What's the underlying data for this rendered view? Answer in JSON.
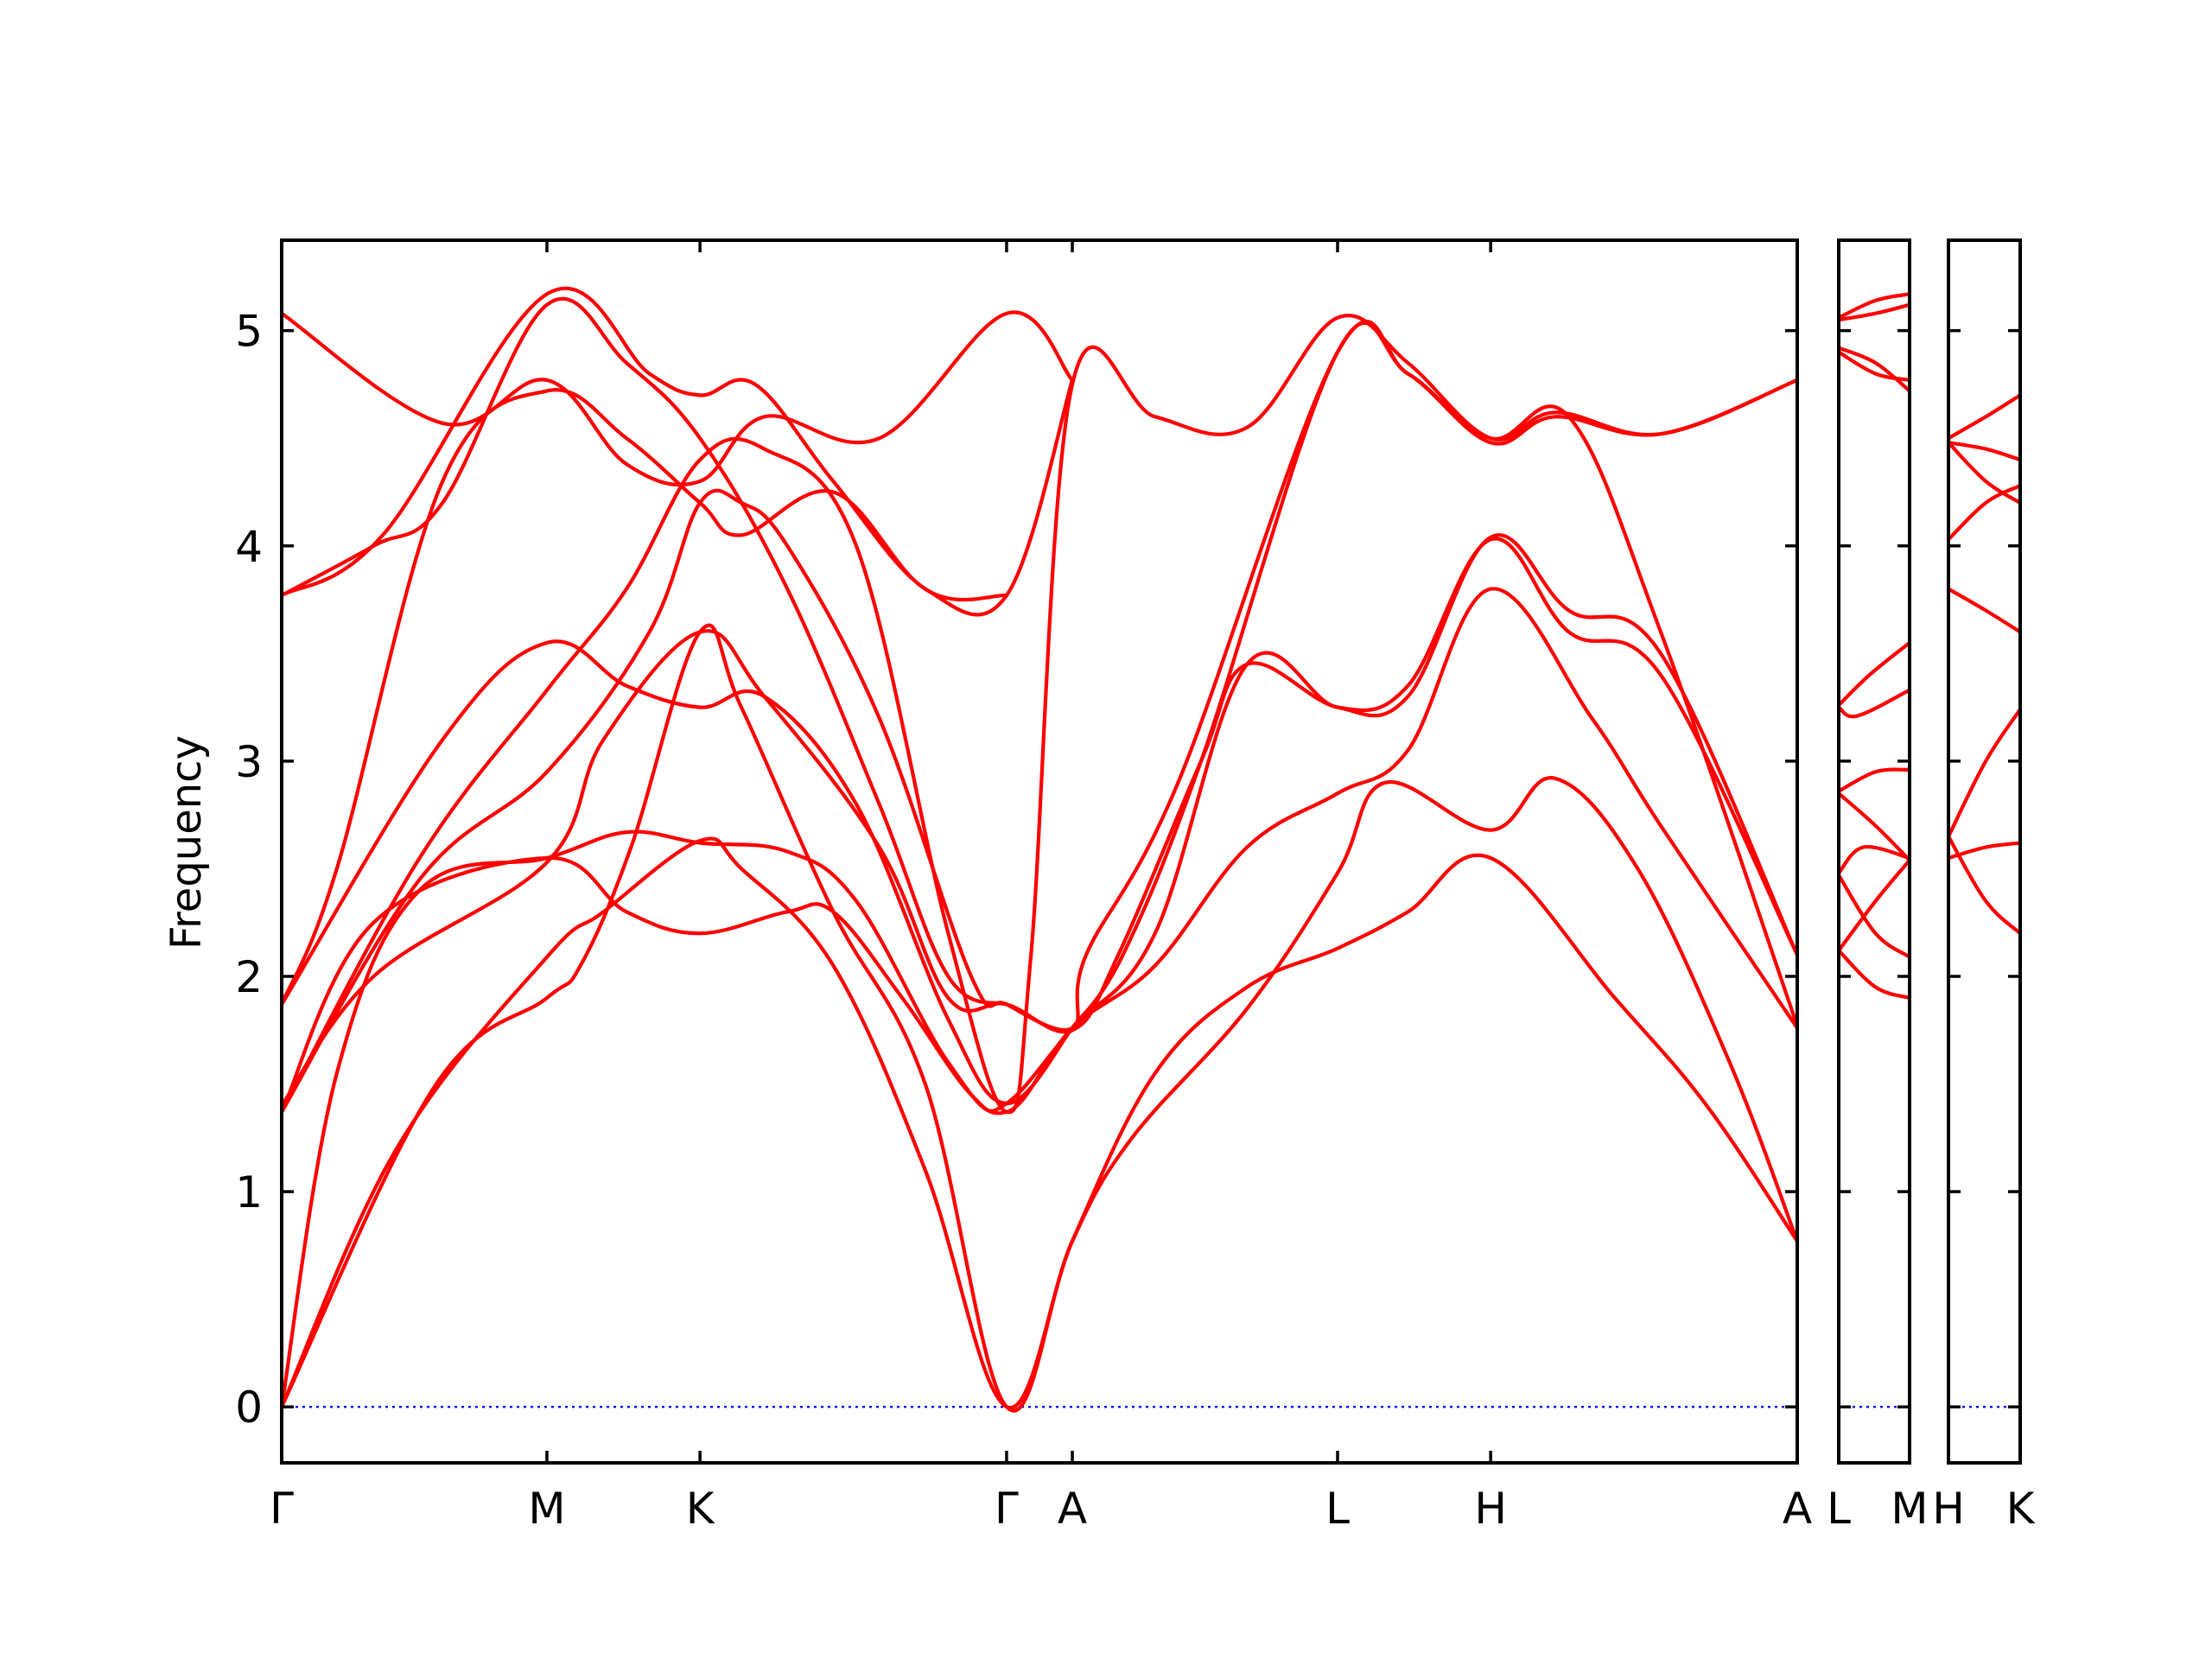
{
  "chart_data": {
    "type": "line",
    "title": "",
    "xlabel": "",
    "ylabel": "Frequency",
    "ylim": [
      -0.26,
      5.42
    ],
    "yticks": [
      0,
      1,
      2,
      3,
      4,
      5
    ],
    "ytick_labels": [
      "0",
      "1",
      "2",
      "3",
      "4",
      "5"
    ],
    "line_color": "#ff0000",
    "zero_line_color": "#0000ff",
    "panels": [
      {
        "name": "panel-main",
        "path": [
          "Γ",
          "M",
          "K",
          "Γ",
          "A",
          "L",
          "H",
          "A"
        ],
        "tick_labels": [
          "Γ",
          "M",
          "K",
          "Γ",
          "A",
          "L",
          "H",
          "A"
        ],
        "x_ticks": [
          0,
          0.577,
          0.91,
          1.577,
          1.72,
          2.297,
          2.63,
          3.297
        ],
        "x_range": [
          0,
          3.297
        ],
        "bands": [
          [
            [
              0,
              0
            ],
            [
              0.33,
              1.48
            ],
            [
              0.577,
              1.9
            ],
            [
              0.65,
              2.05
            ],
            [
              0.76,
              2.6
            ],
            [
              0.91,
              3.6
            ],
            [
              1.0,
              3.25
            ],
            [
              1.2,
              2.3
            ],
            [
              1.4,
              1.5
            ],
            [
              1.577,
              0
            ],
            [
              1.72,
              0.77
            ],
            [
              1.9,
              1.55
            ],
            [
              2.1,
              1.95
            ],
            [
              2.297,
              2.13
            ],
            [
              2.45,
              2.3
            ],
            [
              2.63,
              2.55
            ],
            [
              2.9,
              1.9
            ],
            [
              3.1,
              1.4
            ],
            [
              3.297,
              0.77
            ]
          ],
          [
            [
              0,
              0
            ],
            [
              0.25,
              1.2
            ],
            [
              0.577,
              2.09
            ],
            [
              0.7,
              2.3
            ],
            [
              0.91,
              2.63
            ],
            [
              1.0,
              2.5
            ],
            [
              1.2,
              2.05
            ],
            [
              1.4,
              1.1
            ],
            [
              1.577,
              0
            ],
            [
              1.72,
              0.77
            ],
            [
              1.85,
              1.25
            ],
            [
              2.1,
              1.85
            ],
            [
              2.297,
              2.48
            ],
            [
              2.4,
              2.9
            ],
            [
              2.63,
              2.68
            ],
            [
              2.77,
              2.92
            ],
            [
              2.95,
              2.5
            ],
            [
              3.15,
              1.6
            ],
            [
              3.297,
              0.77
            ]
          ],
          [
            [
              0,
              0
            ],
            [
              0.12,
              1.55
            ],
            [
              0.3,
              2.4
            ],
            [
              0.577,
              2.55
            ],
            [
              0.75,
              2.67
            ],
            [
              0.91,
              2.62
            ],
            [
              1.1,
              2.58
            ],
            [
              1.25,
              2.35
            ],
            [
              1.45,
              1.6
            ],
            [
              1.577,
              1.37
            ],
            [
              1.72,
              1.76
            ],
            [
              1.9,
              2.05
            ],
            [
              2.1,
              2.6
            ],
            [
              2.297,
              2.85
            ],
            [
              2.45,
              3.05
            ],
            [
              2.63,
              3.8
            ],
            [
              2.85,
              3.2
            ],
            [
              3.0,
              2.7
            ],
            [
              3.297,
              1.76
            ]
          ],
          [
            [
              0,
              1.37
            ],
            [
              0.2,
              2.25
            ],
            [
              0.577,
              2.55
            ],
            [
              0.75,
              2.3
            ],
            [
              0.91,
              2.2
            ],
            [
              1.1,
              2.3
            ],
            [
              1.2,
              2.3
            ],
            [
              1.35,
              1.9
            ],
            [
              1.5,
              1.45
            ],
            [
              1.577,
              1.41
            ],
            [
              1.72,
              1.76
            ],
            [
              1.9,
              2.2
            ],
            [
              2.1,
              3.45
            ],
            [
              2.297,
              3.25
            ],
            [
              2.45,
              3.35
            ],
            [
              2.63,
              4.03
            ],
            [
              2.8,
              3.6
            ],
            [
              3.0,
              3.4
            ],
            [
              3.297,
              2.1
            ]
          ],
          [
            [
              0,
              1.4
            ],
            [
              0.2,
              2.0
            ],
            [
              0.577,
              2.53
            ],
            [
              0.7,
              3.1
            ],
            [
              0.91,
              3.6
            ],
            [
              1.05,
              3.3
            ],
            [
              1.3,
              2.6
            ],
            [
              1.45,
              1.9
            ],
            [
              1.577,
              1.87
            ],
            [
              1.72,
              1.75
            ],
            [
              1.82,
              2.1
            ],
            [
              2.0,
              3.0
            ],
            [
              2.1,
              3.45
            ],
            [
              2.297,
              3.25
            ],
            [
              2.45,
              3.3
            ],
            [
              2.63,
              4.04
            ],
            [
              2.8,
              3.7
            ],
            [
              3.0,
              3.5
            ],
            [
              3.297,
              2.1
            ]
          ],
          [
            [
              0,
              1.37
            ],
            [
              0.3,
              2.45
            ],
            [
              0.577,
              2.95
            ],
            [
              0.8,
              3.6
            ],
            [
              0.91,
              4.2
            ],
            [
              1.0,
              4.2
            ],
            [
              1.1,
              4.0
            ],
            [
              1.3,
              3.2
            ],
            [
              1.5,
              2.0
            ],
            [
              1.577,
              1.87
            ],
            [
              1.72,
              1.76
            ],
            [
              1.75,
              2.1
            ],
            [
              1.95,
              2.9
            ],
            [
              2.297,
              4.9
            ],
            [
              2.45,
              4.8
            ],
            [
              2.63,
              4.5
            ],
            [
              2.8,
              4.6
            ],
            [
              3.0,
              3.6
            ],
            [
              3.297,
              1.77
            ]
          ],
          [
            [
              0,
              1.37
            ],
            [
              0.3,
              2.55
            ],
            [
              0.577,
              3.33
            ],
            [
              0.75,
              3.8
            ],
            [
              0.91,
              4.4
            ],
            [
              1.05,
              4.45
            ],
            [
              1.25,
              4.0
            ],
            [
              1.45,
              2.2
            ],
            [
              1.577,
              1.37
            ],
            [
              1.63,
              2.1
            ],
            [
              1.72,
              4.75
            ],
            [
              1.9,
              4.6
            ],
            [
              2.1,
              4.55
            ],
            [
              2.297,
              5.06
            ],
            [
              2.45,
              4.85
            ],
            [
              2.63,
              4.5
            ],
            [
              2.77,
              4.62
            ],
            [
              3.0,
              4.52
            ],
            [
              3.297,
              4.77
            ]
          ],
          [
            [
              0,
              1.87
            ],
            [
              0.35,
              3.1
            ],
            [
              0.577,
              3.55
            ],
            [
              0.75,
              3.35
            ],
            [
              0.91,
              3.25
            ],
            [
              1.05,
              3.3
            ],
            [
              1.25,
              2.8
            ],
            [
              1.45,
              1.8
            ],
            [
              1.577,
              1.41
            ],
            [
              1.72,
              1.76
            ],
            [
              1.72,
              1.76
            ],
            [
              1.83,
              2.1
            ],
            [
              2.0,
              3.0
            ],
            [
              2.297,
              4.9
            ],
            [
              2.45,
              4.8
            ],
            [
              2.63,
              4.48
            ],
            [
              2.77,
              4.6
            ],
            [
              3.0,
              4.52
            ],
            [
              3.297,
              4.77
            ]
          ],
          [
            [
              0,
              1.87
            ],
            [
              0.12,
              2.5
            ],
            [
              0.35,
              4.3
            ],
            [
              0.577,
              4.72
            ],
            [
              0.75,
              4.5
            ],
            [
              0.91,
              4.2
            ],
            [
              1.0,
              4.05
            ],
            [
              1.2,
              4.25
            ],
            [
              1.4,
              3.8
            ],
            [
              1.577,
              3.77
            ],
            [
              1.72,
              4.77
            ]
          ],
          [
            [
              0,
              3.77
            ],
            [
              0.2,
              4.0
            ],
            [
              0.35,
              4.2
            ],
            [
              0.577,
              5.12
            ],
            [
              0.75,
              4.85
            ],
            [
              0.91,
              4.5
            ],
            [
              1.1,
              3.8
            ],
            [
              1.3,
              2.8
            ],
            [
              1.45,
              2.0
            ],
            [
              1.577,
              1.87
            ]
          ],
          [
            [
              0,
              3.77
            ],
            [
              0.22,
              4.05
            ],
            [
              0.577,
              5.17
            ],
            [
              0.8,
              4.8
            ],
            [
              0.91,
              4.7
            ],
            [
              1.03,
              4.75
            ],
            [
              1.2,
              4.3
            ],
            [
              1.4,
              3.8
            ],
            [
              1.577,
              3.77
            ]
          ],
          [
            [
              0,
              5.08
            ],
            [
              0.35,
              4.57
            ],
            [
              0.577,
              4.77
            ],
            [
              0.75,
              4.38
            ],
            [
              0.91,
              4.3
            ],
            [
              1.05,
              4.6
            ],
            [
              1.3,
              4.5
            ],
            [
              1.577,
              5.08
            ],
            [
              1.72,
              4.77
            ]
          ]
        ]
      },
      {
        "name": "panel-l-m",
        "path": [
          "L",
          "M"
        ],
        "tick_labels": [
          "L",
          "M"
        ],
        "x_ticks": [
          0,
          0.577
        ],
        "x_range": [
          0,
          0.577
        ],
        "bands": [
          [
            [
              0,
              2.12
            ],
            [
              0.3,
              2.35
            ],
            [
              0.577,
              2.54
            ]
          ],
          [
            [
              0,
              2.12
            ],
            [
              0.3,
              1.95
            ],
            [
              0.577,
              1.9
            ]
          ],
          [
            [
              0,
              2.47
            ],
            [
              0.3,
              2.2
            ],
            [
              0.577,
              2.09
            ]
          ],
          [
            [
              0,
              2.48
            ],
            [
              0.2,
              2.6
            ],
            [
              0.577,
              2.55
            ]
          ],
          [
            [
              0,
              2.85
            ],
            [
              0.3,
              2.7
            ],
            [
              0.577,
              2.54
            ]
          ],
          [
            [
              0,
              2.86
            ],
            [
              0.3,
              2.95
            ],
            [
              0.577,
              2.96
            ]
          ],
          [
            [
              0,
              3.25
            ],
            [
              0.15,
              3.21
            ],
            [
              0.577,
              3.33
            ]
          ],
          [
            [
              0,
              3.26
            ],
            [
              0.25,
              3.4
            ],
            [
              0.577,
              3.55
            ]
          ],
          [
            [
              0,
              4.92
            ],
            [
              0.3,
              4.85
            ],
            [
              0.577,
              4.72
            ]
          ],
          [
            [
              0,
              4.9
            ],
            [
              0.3,
              4.8
            ],
            [
              0.577,
              4.77
            ]
          ],
          [
            [
              0,
              5.05
            ],
            [
              0.3,
              5.08
            ],
            [
              0.577,
              5.12
            ]
          ],
          [
            [
              0,
              5.06
            ],
            [
              0.3,
              5.14
            ],
            [
              0.577,
              5.17
            ]
          ]
        ]
      },
      {
        "name": "panel-h-k",
        "path": [
          "H",
          "K"
        ],
        "tick_labels": [
          "H",
          "K"
        ],
        "x_ticks": [
          0,
          0.577
        ],
        "x_range": [
          0,
          0.577
        ],
        "bands": [
          [
            [
              0,
              2.55
            ],
            [
              0.3,
              2.6
            ],
            [
              0.577,
              2.62
            ]
          ],
          [
            [
              0,
              2.65
            ],
            [
              0.3,
              2.35
            ],
            [
              0.577,
              2.2
            ]
          ],
          [
            [
              0,
              2.65
            ],
            [
              0.3,
              3.0
            ],
            [
              0.577,
              3.24
            ]
          ],
          [
            [
              0,
              3.8
            ],
            [
              0.3,
              3.7
            ],
            [
              0.577,
              3.6
            ]
          ],
          [
            [
              0,
              4.03
            ],
            [
              0.3,
              4.2
            ],
            [
              0.577,
              4.28
            ]
          ],
          [
            [
              0,
              4.48
            ],
            [
              0.3,
              4.3
            ],
            [
              0.577,
              4.2
            ]
          ],
          [
            [
              0,
              4.48
            ],
            [
              0.3,
              4.45
            ],
            [
              0.577,
              4.4
            ]
          ],
          [
            [
              0,
              4.5
            ],
            [
              0.3,
              4.6
            ],
            [
              0.577,
              4.7
            ]
          ]
        ]
      }
    ]
  }
}
